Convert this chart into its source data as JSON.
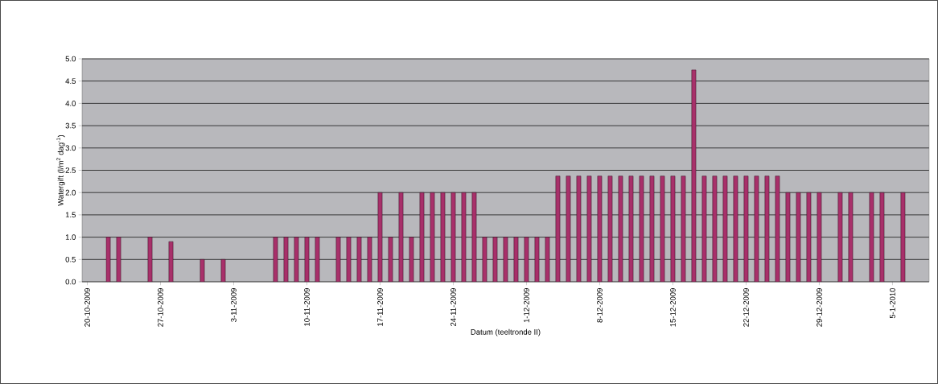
{
  "chart_data": {
    "type": "bar",
    "xlabel": "Datum (teeltronde II)",
    "ylabel": "Watergift (l/m$^{2}$ dag$^{-1}$)",
    "x": [
      "2009-10-22",
      "2009-10-23",
      "2009-10-26",
      "2009-10-28",
      "2009-10-31",
      "2009-11-02",
      "2009-11-07",
      "2009-11-08",
      "2009-11-09",
      "2009-11-10",
      "2009-11-11",
      "2009-11-13",
      "2009-11-14",
      "2009-11-15",
      "2009-11-16",
      "2009-11-17",
      "2009-11-18",
      "2009-11-19",
      "2009-11-20",
      "2009-11-21",
      "2009-11-22",
      "2009-11-23",
      "2009-11-24",
      "2009-11-25",
      "2009-11-26",
      "2009-11-27",
      "2009-11-28",
      "2009-11-29",
      "2009-11-30",
      "2009-12-01",
      "2009-12-02",
      "2009-12-03",
      "2009-12-04",
      "2009-12-05",
      "2009-12-06",
      "2009-12-07",
      "2009-12-08",
      "2009-12-09",
      "2009-12-10",
      "2009-12-11",
      "2009-12-12",
      "2009-12-13",
      "2009-12-14",
      "2009-12-15",
      "2009-12-16",
      "2009-12-17",
      "2009-12-18",
      "2009-12-19",
      "2009-12-20",
      "2009-12-21",
      "2009-12-22",
      "2009-12-23",
      "2009-12-24",
      "2009-12-25",
      "2009-12-26",
      "2009-12-27",
      "2009-12-28",
      "2009-12-29",
      "2009-12-31",
      "2010-01-01",
      "2010-01-03",
      "2010-01-04",
      "2010-01-06"
    ],
    "values": [
      1.0,
      1.0,
      1.0,
      0.9,
      0.5,
      0.5,
      1.0,
      1.0,
      1.0,
      1.0,
      1.0,
      1.0,
      1.0,
      1.0,
      1.0,
      2.0,
      1.0,
      2.0,
      1.0,
      2.0,
      2.0,
      2.0,
      2.0,
      2.0,
      2.0,
      1.0,
      1.0,
      1.0,
      1.0,
      1.0,
      1.0,
      1.0,
      2.37,
      2.37,
      2.37,
      2.37,
      2.37,
      2.37,
      2.37,
      2.37,
      2.37,
      2.37,
      2.37,
      2.37,
      2.37,
      4.75,
      2.37,
      2.37,
      2.37,
      2.37,
      2.37,
      2.37,
      2.37,
      2.37,
      2.0,
      2.0,
      2.0,
      2.0,
      2.0,
      2.0,
      2.0,
      2.0,
      2.0
    ],
    "color": "#a8306a",
    "xlim": [
      "2009-10-19T12:00",
      "2010-01-08T12:00"
    ],
    "xticks": [
      {
        "value": "2009-10-20",
        "label": "20-10-2009"
      },
      {
        "value": "2009-10-27",
        "label": "27-10-2009"
      },
      {
        "value": "2009-11-03",
        "label": "3-11-2009"
      },
      {
        "value": "2009-11-10",
        "label": "10-11-2009"
      },
      {
        "value": "2009-11-17",
        "label": "17-11-2009"
      },
      {
        "value": "2009-11-24",
        "label": "24-11-2009"
      },
      {
        "value": "2009-12-01",
        "label": "1-12-2009"
      },
      {
        "value": "2009-12-08",
        "label": "8-12-2009"
      },
      {
        "value": "2009-12-15",
        "label": "15-12-2009"
      },
      {
        "value": "2009-12-22",
        "label": "22-12-2009"
      },
      {
        "value": "2009-12-29",
        "label": "29-12-2009"
      },
      {
        "value": "2010-01-05",
        "label": "5-1-2010"
      }
    ],
    "ylim": [
      0,
      5
    ],
    "yticks": [
      {
        "value": 0,
        "label": "0.0"
      },
      {
        "value": 0.5,
        "label": "0.5"
      },
      {
        "value": 1,
        "label": "1.0"
      },
      {
        "value": 1.5,
        "label": "1.5"
      },
      {
        "value": 2,
        "label": "2.0"
      },
      {
        "value": 2.5,
        "label": "2.5"
      },
      {
        "value": 3,
        "label": "3.0"
      },
      {
        "value": 3.5,
        "label": "3.5"
      },
      {
        "value": 4,
        "label": "4.0"
      },
      {
        "value": 4.5,
        "label": "4.5"
      },
      {
        "value": 5,
        "label": "5.0"
      }
    ],
    "grid": "y"
  }
}
